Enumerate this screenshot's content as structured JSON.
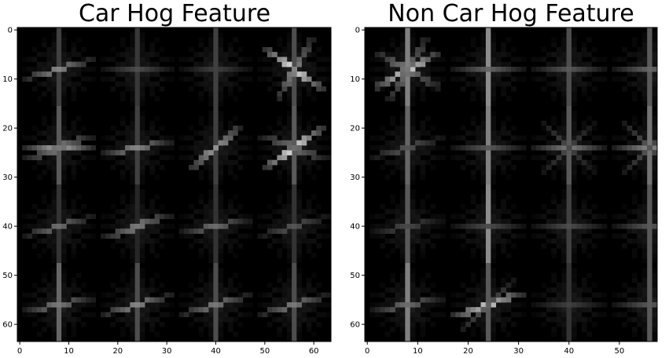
{
  "chart_data": [
    {
      "type": "heatmap",
      "title": "Car Hog Feature",
      "xlabel": "",
      "ylabel": "",
      "xlim": [
        0,
        64
      ],
      "ylim": [
        64,
        0
      ],
      "x_ticks": [
        0,
        10,
        20,
        30,
        40,
        50,
        60
      ],
      "y_ticks": [
        0,
        10,
        20,
        30,
        40,
        50,
        60
      ],
      "colormap": "gray",
      "background": "#000000",
      "grid": false,
      "legend": "none",
      "cells_per_side": 4,
      "cell_size": 16,
      "cells": [
        {
          "row": 0,
          "col": 0,
          "angles": [
            15
          ],
          "strengths": [
            0.55
          ],
          "vertical": 0.25
        },
        {
          "row": 0,
          "col": 1,
          "angles": [
            0
          ],
          "strengths": [
            0.3
          ],
          "vertical": 0.22
        },
        {
          "row": 0,
          "col": 2,
          "angles": [
            0
          ],
          "strengths": [
            0.25
          ],
          "vertical": 0.25
        },
        {
          "row": 0,
          "col": 3,
          "angles": [
            -35,
            60
          ],
          "strengths": [
            0.9,
            0.55
          ],
          "vertical": 0.3
        },
        {
          "row": 1,
          "col": 0,
          "angles": [
            0,
            20
          ],
          "strengths": [
            0.7,
            0.5
          ],
          "vertical": 0.35
        },
        {
          "row": 1,
          "col": 1,
          "angles": [
            10
          ],
          "strengths": [
            0.55
          ],
          "vertical": 0.25
        },
        {
          "row": 1,
          "col": 2,
          "angles": [
            40
          ],
          "strengths": [
            0.6
          ],
          "vertical": 0.25
        },
        {
          "row": 1,
          "col": 3,
          "angles": [
            35,
            -20
          ],
          "strengths": [
            0.9,
            0.45
          ],
          "vertical": 0.35
        },
        {
          "row": 2,
          "col": 0,
          "angles": [
            15
          ],
          "strengths": [
            0.45
          ],
          "vertical": 0.2
        },
        {
          "row": 2,
          "col": 1,
          "angles": [
            20
          ],
          "strengths": [
            0.5
          ],
          "vertical": 0.15
        },
        {
          "row": 2,
          "col": 2,
          "angles": [
            10
          ],
          "strengths": [
            0.45
          ],
          "vertical": 0.2
        },
        {
          "row": 2,
          "col": 3,
          "angles": [
            15
          ],
          "strengths": [
            0.35
          ],
          "vertical": 0.2
        },
        {
          "row": 3,
          "col": 0,
          "angles": [
            10
          ],
          "strengths": [
            0.5
          ],
          "vertical": 0.4
        },
        {
          "row": 3,
          "col": 1,
          "angles": [
            15
          ],
          "strengths": [
            0.55
          ],
          "vertical": 0.3
        },
        {
          "row": 3,
          "col": 2,
          "angles": [
            15
          ],
          "strengths": [
            0.5
          ],
          "vertical": 0.3
        },
        {
          "row": 3,
          "col": 3,
          "angles": [
            15
          ],
          "strengths": [
            0.5
          ],
          "vertical": 0.3
        }
      ]
    },
    {
      "type": "heatmap",
      "title": "Non Car Hog Feature",
      "xlabel": "",
      "ylabel": "",
      "xlim": [
        0,
        58
      ],
      "ylim": [
        64,
        0
      ],
      "x_ticks": [
        0,
        10,
        20,
        30,
        40,
        50
      ],
      "y_ticks": [
        0,
        10,
        20,
        30,
        40,
        50,
        60
      ],
      "colormap": "gray",
      "background": "#000000",
      "grid": false,
      "legend": "none",
      "cells_per_side": 4,
      "cell_size": 16,
      "cells": [
        {
          "row": 0,
          "col": 0,
          "angles": [
            30,
            -30,
            60
          ],
          "strengths": [
            0.85,
            0.5,
            0.5
          ],
          "vertical": 0.5
        },
        {
          "row": 0,
          "col": 1,
          "angles": [
            0
          ],
          "strengths": [
            0.4
          ],
          "vertical": 0.55
        },
        {
          "row": 0,
          "col": 2,
          "angles": [
            0
          ],
          "strengths": [
            0.35
          ],
          "vertical": 0.3
        },
        {
          "row": 0,
          "col": 3,
          "angles": [
            0
          ],
          "strengths": [
            0.4
          ],
          "vertical": 0.35
        },
        {
          "row": 1,
          "col": 0,
          "angles": [
            15
          ],
          "strengths": [
            0.35
          ],
          "vertical": 0.4
        },
        {
          "row": 1,
          "col": 1,
          "angles": [
            0
          ],
          "strengths": [
            0.35
          ],
          "vertical": 0.5
        },
        {
          "row": 1,
          "col": 2,
          "angles": [
            0,
            45,
            -45
          ],
          "strengths": [
            0.5,
            0.3,
            0.3
          ],
          "vertical": 0.35
        },
        {
          "row": 1,
          "col": 3,
          "angles": [
            0,
            45,
            -45
          ],
          "strengths": [
            0.55,
            0.35,
            0.35
          ],
          "vertical": 0.45
        },
        {
          "row": 2,
          "col": 0,
          "angles": [
            10
          ],
          "strengths": [
            0.3
          ],
          "vertical": 0.35
        },
        {
          "row": 2,
          "col": 1,
          "angles": [
            0
          ],
          "strengths": [
            0.3
          ],
          "vertical": 0.55
        },
        {
          "row": 2,
          "col": 2,
          "angles": [
            0
          ],
          "strengths": [
            0.3
          ],
          "vertical": 0.25
        },
        {
          "row": 2,
          "col": 3,
          "angles": [
            0
          ],
          "strengths": [
            0.35
          ],
          "vertical": 0.35
        },
        {
          "row": 3,
          "col": 0,
          "angles": [
            10
          ],
          "strengths": [
            0.45
          ],
          "vertical": 0.5
        },
        {
          "row": 3,
          "col": 1,
          "angles": [
            20,
            45
          ],
          "strengths": [
            0.8,
            0.4
          ],
          "vertical": 0.35
        },
        {
          "row": 3,
          "col": 2,
          "angles": [
            0
          ],
          "strengths": [
            0.25
          ],
          "vertical": 0.2
        },
        {
          "row": 3,
          "col": 3,
          "angles": [
            0
          ],
          "strengths": [
            0.35
          ],
          "vertical": 0.35
        }
      ]
    }
  ]
}
